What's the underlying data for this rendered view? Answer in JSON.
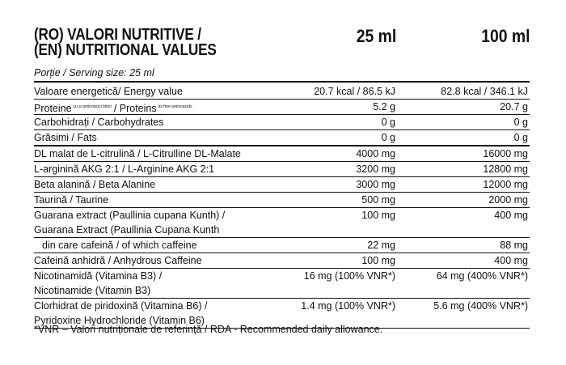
{
  "header": {
    "title_lines": [
      "(RO) VALORI NUTRITIVE /",
      "(EN) NUTRITIONAL VALUES"
    ],
    "col_25": "25 ml",
    "col_100": "100 ml",
    "serving": "Porție / Serving size: 25 ml"
  },
  "table": {
    "rows": [
      {
        "lines": [
          "Valoare energetică/ Energy value"
        ],
        "v25": "20.7 kcal / 86.5 kJ",
        "v100": "82.8 kcal / 346.1 kJ"
      },
      {
        "parts": [
          {
            "text": "Proteine"
          },
          {
            "sup": "cu și aminoacizi liberi"
          },
          {
            "text": "/ Proteins"
          },
          {
            "sup": "as free aminoacids"
          }
        ],
        "v25": "5.2 g",
        "v100": "20.7 g"
      },
      {
        "lines": [
          "Carbohidrați / Carbohydrates"
        ],
        "v25": "0 g",
        "v100": "0 g"
      },
      {
        "lines": [
          "Grăsimi / Fats"
        ],
        "v25": "0 g",
        "v100": "0 g"
      },
      {
        "lines": [
          "DL malat de L-citrulină / L-Citrulline DL-Malate"
        ],
        "v25": "4000 mg",
        "v100": "16000 mg"
      },
      {
        "lines": [
          "L-arginină AKG 2:1 / L-Arginine AKG 2:1"
        ],
        "v25": "3200 mg",
        "v100": "12800 mg"
      },
      {
        "lines": [
          "Beta alanină / Beta Alanine"
        ],
        "v25": "3000 mg",
        "v100": "12000 mg"
      },
      {
        "lines": [
          "Taurină / Taurine"
        ],
        "v25": "500 mg",
        "v100": "2000 mg"
      },
      {
        "lines": [
          "Guarana extract (Paullinia cupana Kunth) /",
          "Guarana Extract (Paullinia Cupana Kunth"
        ],
        "v25": "100 mg",
        "v100": "400 mg"
      },
      {
        "lines": [
          "din care cafeină / of which caffeine"
        ],
        "v25": "22 mg",
        "v100": "88 mg"
      },
      {
        "lines": [
          "Cafeină anhidră / Anhydrous Caffeine"
        ],
        "v25": "100 mg",
        "v100": "400 mg"
      },
      {
        "lines": [
          "Nicotinamidă (Vitamina B3) /",
          "Nicotinamide (Vitamin B3)"
        ],
        "v25": "16 mg (100% VNR*)",
        "v100": "64 mg (400% VNR*)"
      },
      {
        "lines": [
          "Clorhidrat de piridoxină (Vitamina B6) /",
          "Pyridoxine Hydrochloride (Vitamin B6)"
        ],
        "v25": "1.4 mg (100% VNR*)",
        "v100": "5.6 mg (400% VNR*)"
      }
    ]
  },
  "footnote": "*VNR – Valori nutriționale de referință / RDA - Recommended daily allowance."
}
